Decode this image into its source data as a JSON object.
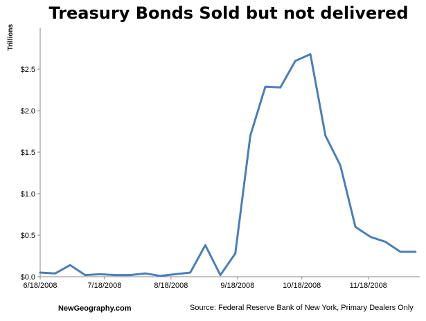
{
  "chart_data": {
    "type": "line",
    "title": "Treasury Bonds Sold but not delivered",
    "xlabel": "",
    "ylabel": "Trillions",
    "x": [
      "6/18/2008",
      "6/25/2008",
      "7/2/2008",
      "7/9/2008",
      "7/16/2008",
      "7/23/2008",
      "7/30/2008",
      "8/6/2008",
      "8/13/2008",
      "8/20/2008",
      "8/27/2008",
      "9/3/2008",
      "9/10/2008",
      "9/17/2008",
      "9/24/2008",
      "10/1/2008",
      "10/8/2008",
      "10/15/2008",
      "10/22/2008",
      "10/29/2008",
      "11/5/2008",
      "11/12/2008",
      "11/19/2008",
      "11/26/2008",
      "12/3/2008",
      "12/10/2008"
    ],
    "values": [
      0.05,
      0.04,
      0.14,
      0.02,
      0.03,
      0.02,
      0.02,
      0.04,
      0.01,
      0.03,
      0.05,
      0.38,
      0.02,
      0.28,
      1.7,
      2.29,
      2.28,
      2.6,
      2.68,
      1.7,
      1.34,
      0.6,
      0.48,
      0.42,
      0.3,
      0.3
    ],
    "x_ticks": [
      "6/18/2008",
      "7/18/2008",
      "8/18/2008",
      "9/18/2008",
      "10/18/2008",
      "11/18/2008"
    ],
    "y_ticks": [
      "$0.0",
      "$0.5",
      "$1.0",
      "$1.5",
      "$2.0",
      "$2.5"
    ],
    "ylim": [
      0,
      3.0
    ],
    "grid": false,
    "line_color": "#4a7ebb"
  },
  "footer": {
    "site": "NewGeography.com",
    "source": "Source:  Federal Reserve Bank of New York, Primary Dealers Only"
  }
}
